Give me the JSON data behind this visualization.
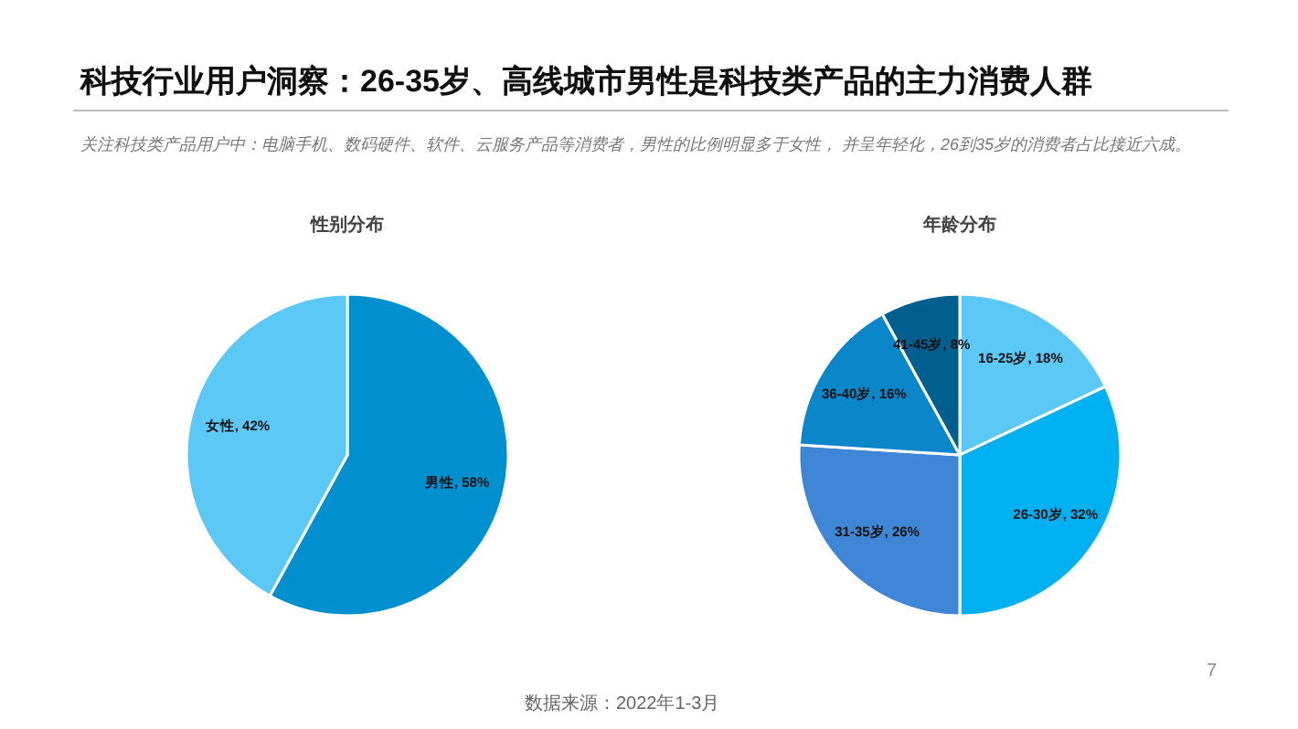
{
  "chart_data": [
    {
      "type": "other",
      "title": "科技行业用户洞察：26-35岁、高线城市男性是科技类产品的主力消费人群",
      "subtitle": "关注科技类产品用户中：电脑手机、数码硬件、软件、云服务产品等消费者，男性的比例明显多于女性， 并呈年轻化，26到35岁的消费者占比接近六成。",
      "annotations": [
        "7",
        "数据来源：2022年1-3月"
      ]
    },
    {
      "type": "pie",
      "title": "性别分布",
      "categories": [
        "男性",
        "女性"
      ],
      "values": [
        58,
        42
      ],
      "colors": [
        "#0090d0",
        "#5bc8f5"
      ],
      "value_labels": [
        "58%",
        "42%"
      ]
    },
    {
      "type": "pie",
      "title": "年龄分布",
      "categories": [
        "16-25岁",
        "26-30岁",
        "31-35岁",
        "36-40岁",
        "41-45岁"
      ],
      "values": [
        18,
        32,
        26,
        16,
        8
      ],
      "colors": [
        "#5bc8f5",
        "#00b0f0",
        "#3f87d6",
        "#0b86c8",
        "#005f8f"
      ],
      "value_labels": [
        "18%",
        "32%",
        "26%",
        "16%",
        "8%"
      ]
    }
  ]
}
